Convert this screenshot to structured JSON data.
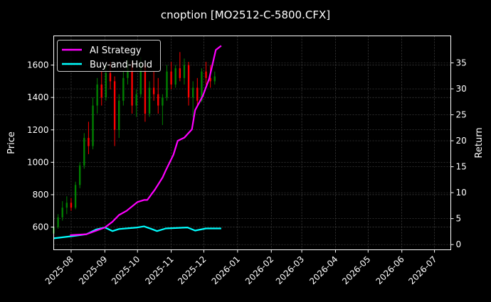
{
  "chart_data": {
    "type": "candlestick+line",
    "title": "cnoption [MO2512-C-5800.CFX]",
    "ylabel": "Price",
    "y2label": "Return",
    "xlim": [
      "2025-07-16",
      "2026-07-16"
    ],
    "ylim": [
      460,
      1780
    ],
    "y2lim": [
      -1,
      40.2
    ],
    "grid": true,
    "legend_position": "top-left",
    "xticks": [
      "2025-08",
      "2025-09",
      "2025-10",
      "2025-11",
      "2025-12",
      "2026-01",
      "2026-02",
      "2026-03",
      "2026-04",
      "2026-05",
      "2026-06",
      "2026-07"
    ],
    "yticks": [
      600,
      800,
      1000,
      1200,
      1400,
      1600
    ],
    "y2ticks": [
      0,
      5,
      10,
      15,
      20,
      25,
      30,
      35
    ],
    "colors": {
      "up": "#008000",
      "down": "#ff0000",
      "strategy": "#ff00ff",
      "buyhold": "#00ffff"
    },
    "candles": [
      [
        "2025-07-16",
        560,
        620,
        540,
        600
      ],
      [
        "2025-07-20",
        600,
        680,
        590,
        660
      ],
      [
        "2025-07-24",
        660,
        760,
        640,
        720
      ],
      [
        "2025-07-28",
        720,
        790,
        680,
        750
      ],
      [
        "2025-08-01",
        750,
        780,
        700,
        720
      ],
      [
        "2025-08-05",
        720,
        880,
        710,
        860
      ],
      [
        "2025-08-09",
        860,
        1000,
        840,
        980
      ],
      [
        "2025-08-13",
        980,
        1180,
        960,
        1150
      ],
      [
        "2025-08-17",
        1150,
        1250,
        1050,
        1100
      ],
      [
        "2025-08-21",
        1100,
        1400,
        1080,
        1350
      ],
      [
        "2025-08-25",
        1350,
        1520,
        1300,
        1480
      ],
      [
        "2025-08-29",
        1480,
        1560,
        1350,
        1400
      ],
      [
        "2025-09-02",
        1400,
        1600,
        1380,
        1550
      ],
      [
        "2025-09-06",
        1550,
        1620,
        1450,
        1500
      ],
      [
        "2025-09-10",
        1500,
        1530,
        1100,
        1200
      ],
      [
        "2025-09-14",
        1200,
        1420,
        1150,
        1380
      ],
      [
        "2025-09-18",
        1380,
        1560,
        1350,
        1520
      ],
      [
        "2025-09-22",
        1520,
        1640,
        1480,
        1600
      ],
      [
        "2025-09-26",
        1600,
        1620,
        1300,
        1350
      ],
      [
        "2025-09-30",
        1350,
        1450,
        1280,
        1420
      ],
      [
        "2025-10-04",
        1420,
        1650,
        1400,
        1600
      ],
      [
        "2025-10-08",
        1600,
        1620,
        1250,
        1300
      ],
      [
        "2025-10-12",
        1300,
        1500,
        1280,
        1460
      ],
      [
        "2025-10-16",
        1460,
        1560,
        1380,
        1420
      ],
      [
        "2025-10-20",
        1420,
        1520,
        1300,
        1350
      ],
      [
        "2025-10-24",
        1350,
        1420,
        1230,
        1400
      ],
      [
        "2025-10-28",
        1400,
        1600,
        1380,
        1560
      ],
      [
        "2025-11-01",
        1560,
        1620,
        1450,
        1480
      ],
      [
        "2025-11-05",
        1480,
        1600,
        1460,
        1580
      ],
      [
        "2025-11-09",
        1580,
        1680,
        1500,
        1520
      ],
      [
        "2025-11-13",
        1520,
        1640,
        1480,
        1600
      ],
      [
        "2025-11-17",
        1600,
        1620,
        1350,
        1400
      ],
      [
        "2025-11-21",
        1400,
        1500,
        1280,
        1460
      ],
      [
        "2025-11-25",
        1460,
        1520,
        1350,
        1380
      ],
      [
        "2025-11-29",
        1380,
        1580,
        1370,
        1560
      ],
      [
        "2025-12-03",
        1560,
        1620,
        1480,
        1520
      ],
      [
        "2025-12-07",
        1520,
        1600,
        1460,
        1500
      ],
      [
        "2025-12-11",
        1500,
        1560,
        1480,
        1530
      ]
    ],
    "series": [
      {
        "name": "AI Strategy",
        "dates": [
          "2025-07-31",
          "2025-08-15",
          "2025-09-01",
          "2025-09-08",
          "2025-09-14",
          "2025-09-21",
          "2025-10-01",
          "2025-10-07",
          "2025-10-10",
          "2025-10-17",
          "2025-10-24",
          "2025-10-27",
          "2025-11-03",
          "2025-11-07",
          "2025-11-13",
          "2025-11-20",
          "2025-11-23",
          "2025-11-30",
          "2025-12-06",
          "2025-12-12",
          "2025-12-17"
        ],
        "values": [
          1.8,
          2.0,
          3.3,
          4.4,
          5.7,
          6.5,
          8.2,
          8.6,
          8.6,
          10.6,
          12.9,
          14.3,
          17.3,
          20.0,
          20.6,
          22.2,
          25.9,
          28.6,
          32.0,
          37.5,
          38.3
        ]
      },
      {
        "name": "Buy-and-Hold",
        "dates": [
          "2025-07-16",
          "2025-08-01",
          "2025-08-15",
          "2025-08-24",
          "2025-09-01",
          "2025-09-04",
          "2025-09-08",
          "2025-09-14",
          "2025-10-01",
          "2025-10-07",
          "2025-10-14",
          "2025-10-19",
          "2025-10-27",
          "2025-11-16",
          "2025-11-23",
          "2025-12-03",
          "2025-12-17"
        ],
        "values": [
          1.2,
          1.6,
          2.0,
          2.9,
          3.3,
          3.0,
          2.6,
          3.0,
          3.3,
          3.5,
          3.0,
          2.6,
          3.1,
          3.3,
          2.7,
          3.1,
          3.1
        ]
      }
    ]
  }
}
